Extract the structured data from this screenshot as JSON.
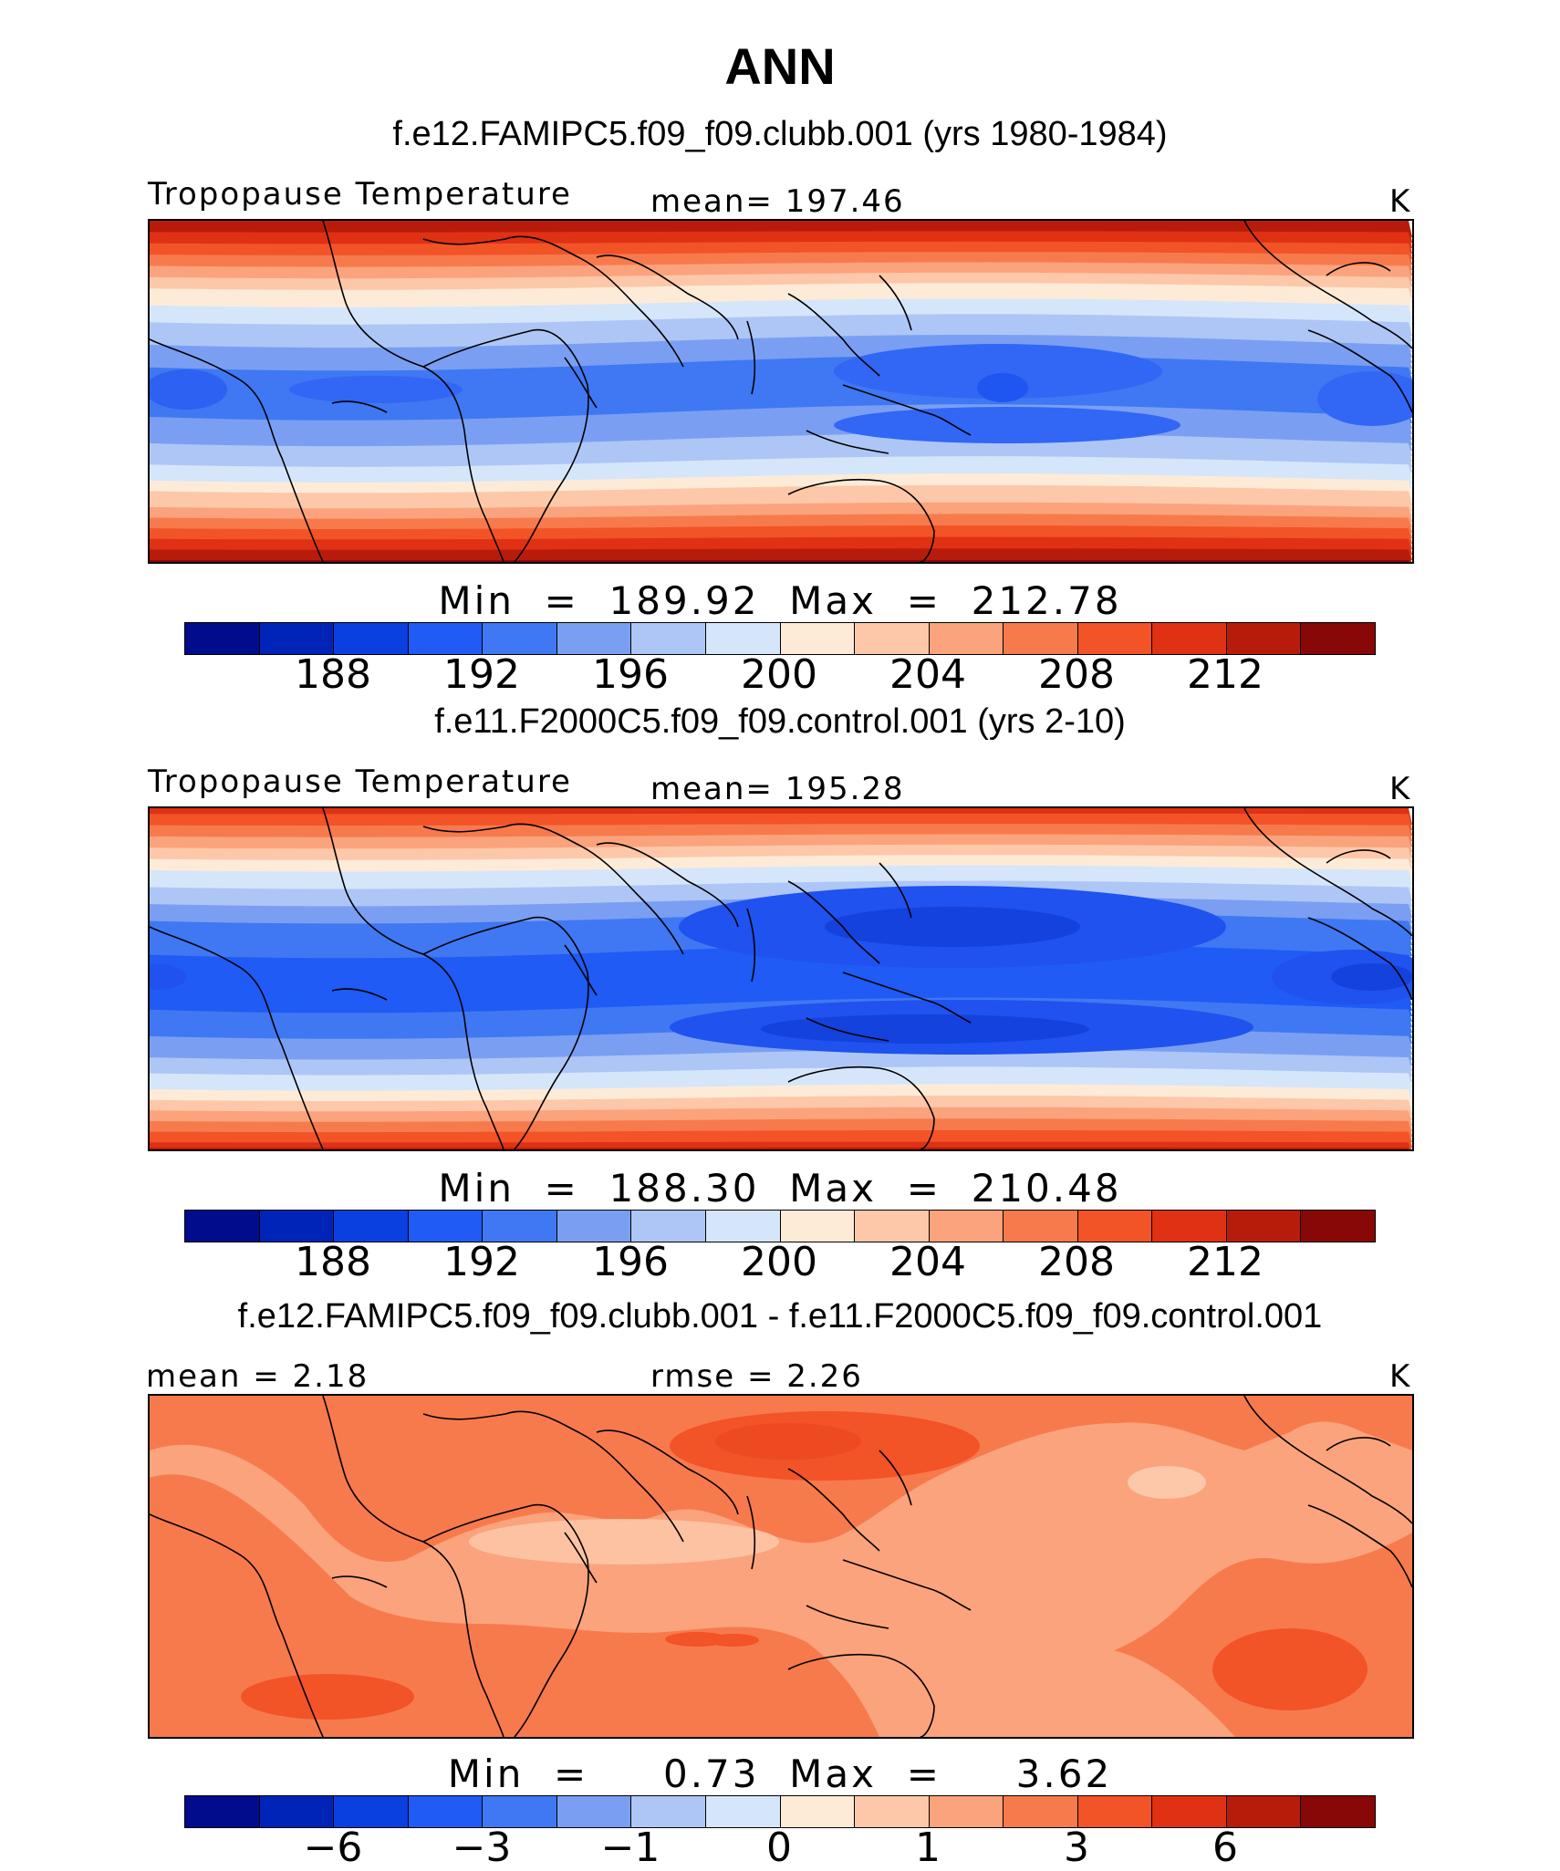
{
  "title": "ANN",
  "palette": [
    "#000c8c",
    "#0024b7",
    "#0a3fe0",
    "#1f5bf4",
    "#3f78f2",
    "#7a9ff2",
    "#aec6f6",
    "#d6e6fa",
    "#fdebd8",
    "#fcc8a9",
    "#fba37c",
    "#f77a4d",
    "#f25327",
    "#e03114",
    "#b71c0b",
    "#870807"
  ],
  "panels": [
    {
      "case_title": "f.e12.FAMIPC5.f09_f09.clubb.001 (yrs 1980-1984)",
      "left_label": "Tropopause Temperature",
      "center_label": "mean=  197.46",
      "units": "K",
      "min_max": "Min  =  189.92  Max  =  212.78",
      "tick_labels": [
        "188",
        "192",
        "196",
        "200",
        "204",
        "208",
        "212"
      ]
    },
    {
      "case_title": "f.e11.F2000C5.f09_f09.control.001 (yrs 2-10)",
      "left_label": "Tropopause Temperature",
      "center_label": "mean=  195.28",
      "units": "K",
      "min_max": "Min  =  188.30  Max  =  210.48",
      "tick_labels": [
        "188",
        "192",
        "196",
        "200",
        "204",
        "208",
        "212"
      ]
    },
    {
      "case_title": "f.e12.FAMIPC5.f09_f09.clubb.001 - f.e11.F2000C5.f09_f09.control.001",
      "left_label": "mean =    2.18",
      "center_label": "rmse =    2.26",
      "units": "K",
      "min_max": "Min  =     0.73  Max  =     3.62",
      "tick_labels": [
        "−6",
        "−3",
        "−1",
        "0",
        "1",
        "3",
        "6"
      ]
    }
  ],
  "chart_data": [
    {
      "type": "heatmap",
      "title": "f.e12.FAMIPC5.f09_f09.clubb.001 (yrs 1980-1984)",
      "variable": "Tropopause Temperature",
      "units": "K",
      "mean": 197.46,
      "min": 189.92,
      "max": 212.78,
      "contour_levels": [
        186,
        188,
        190,
        192,
        194,
        196,
        198,
        200,
        202,
        204,
        206,
        208,
        210,
        212,
        214
      ],
      "colorbar_ticks": [
        188,
        192,
        196,
        200,
        204,
        208,
        212
      ]
    },
    {
      "type": "heatmap",
      "title": "f.e11.F2000C5.f09_f09.control.001 (yrs 2-10)",
      "variable": "Tropopause Temperature",
      "units": "K",
      "mean": 195.28,
      "min": 188.3,
      "max": 210.48,
      "contour_levels": [
        186,
        188,
        190,
        192,
        194,
        196,
        198,
        200,
        202,
        204,
        206,
        208,
        210,
        212,
        214
      ],
      "colorbar_ticks": [
        188,
        192,
        196,
        200,
        204,
        208,
        212
      ]
    },
    {
      "type": "heatmap",
      "title": "f.e12.FAMIPC5.f09_f09.clubb.001 - f.e11.F2000C5.f09_f09.control.001",
      "units": "K",
      "mean": 2.18,
      "rmse": 2.26,
      "min": 0.73,
      "max": 3.62,
      "contour_levels": [
        -8,
        -6,
        -4,
        -3,
        -2,
        -1,
        -0.5,
        0,
        0.5,
        1,
        2,
        3,
        4,
        6,
        8
      ],
      "colorbar_ticks": [
        -6,
        -3,
        -1,
        0,
        1,
        3,
        6
      ]
    }
  ]
}
